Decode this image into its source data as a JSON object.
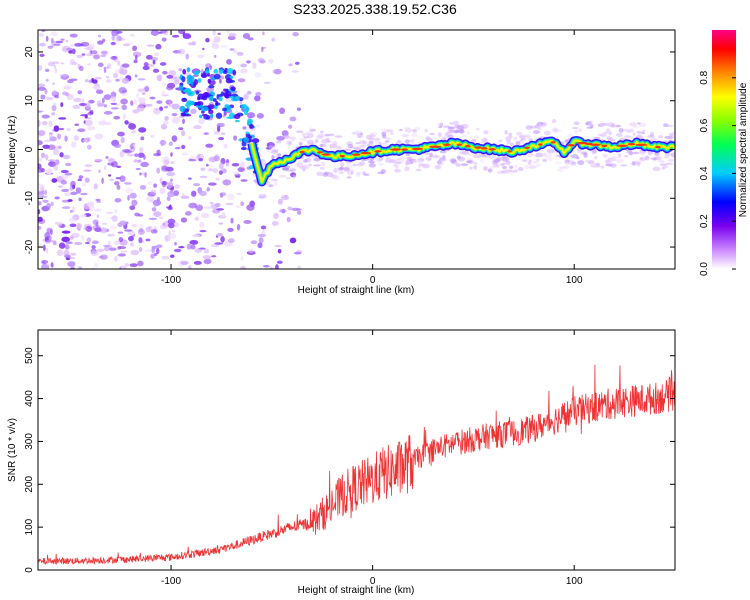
{
  "figure": {
    "title": "S233.2025.338.19.52.C36"
  },
  "chart_data": [
    {
      "type": "heatmap",
      "xlabel": "Height of straight line (km)",
      "ylabel": "Frequency (Hz)",
      "xlim": [
        -166,
        150
      ],
      "ylim": [
        -24.5,
        24.5
      ],
      "xticks": [
        -100,
        0,
        100
      ],
      "yticks": [
        -20,
        -10,
        0,
        10,
        20
      ],
      "colorbar": {
        "label": "Normalized spectral amplitude",
        "range": [
          0,
          1
        ],
        "ticks": [
          0,
          0.2,
          0.4,
          0.6,
          0.8
        ],
        "tick_labels": [
          "0.0",
          "0.2",
          "0.4",
          "0.6",
          "0.8"
        ]
      },
      "ridge": {
        "note": "dominant frequency track (Hz) vs height (km)",
        "x": [
          -68,
          -62,
          -58,
          -55,
          -50,
          -45,
          -40,
          -35,
          -30,
          -20,
          -10,
          0,
          10,
          20,
          30,
          40,
          50,
          60,
          70,
          80,
          90,
          95,
          100,
          110,
          120,
          130,
          140,
          150
        ],
        "y": [
          7.5,
          4.0,
          -2.0,
          -6.5,
          -3.0,
          -2.5,
          -1.5,
          -0.5,
          0.0,
          -1.5,
          -1.2,
          -0.5,
          0.0,
          0.0,
          0.5,
          1.2,
          0.5,
          0.0,
          -0.5,
          0.8,
          1.5,
          -0.5,
          1.5,
          1.0,
          0.5,
          1.2,
          0.5,
          0.5
        ]
      }
    },
    {
      "type": "line",
      "xlabel": "Height of straight line (km)",
      "ylabel": "SNR (10 * v/v)",
      "xlim": [
        -166,
        150
      ],
      "ylim": [
        0,
        560
      ],
      "xticks": [
        -100,
        0,
        100
      ],
      "yticks": [
        0,
        100,
        200,
        300,
        400,
        500
      ],
      "series": [
        {
          "name": "SNR",
          "color": "#ee3333",
          "x": [
            -166,
            -140,
            -120,
            -100,
            -85,
            -70,
            -60,
            -50,
            -40,
            -30,
            -20,
            -15,
            -10,
            -5,
            0,
            5,
            10,
            15,
            20,
            30,
            40,
            50,
            60,
            70,
            80,
            90,
            100,
            110,
            120,
            130,
            140,
            150
          ],
          "y": [
            20,
            22,
            25,
            30,
            40,
            55,
            70,
            85,
            100,
            110,
            150,
            175,
            190,
            200,
            210,
            225,
            230,
            240,
            255,
            280,
            295,
            305,
            315,
            320,
            330,
            350,
            370,
            380,
            390,
            395,
            400,
            410
          ]
        }
      ]
    }
  ]
}
